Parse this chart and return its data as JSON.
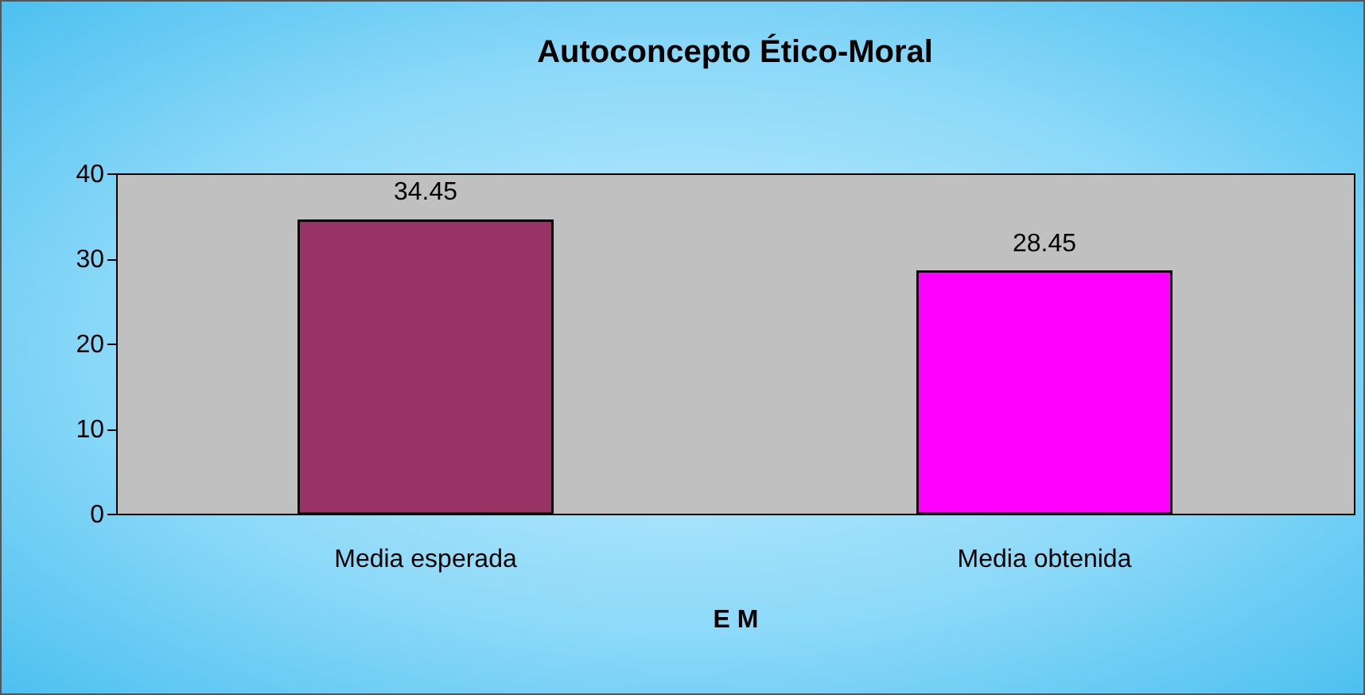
{
  "chart_data": {
    "type": "bar",
    "title": "Autoconcepto Ético-Moral",
    "xlabel": "E M",
    "categories": [
      "Media esperada",
      "Media obtenida"
    ],
    "values": [
      34.45,
      28.45
    ],
    "colors": [
      "#993366",
      "#ff00ff"
    ],
    "ylim": [
      0,
      40
    ],
    "yticks": [
      0,
      10,
      20,
      30,
      40
    ],
    "grid": false,
    "data_labels": true
  }
}
